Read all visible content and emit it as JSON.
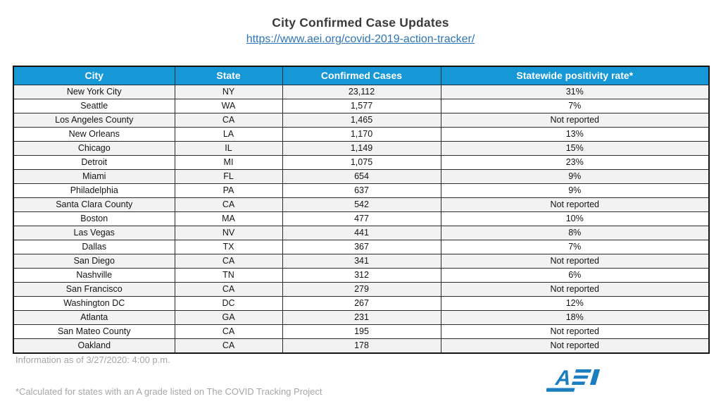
{
  "page": {
    "title": "City Confirmed Case Updates",
    "link_text": "https://www.aei.org/covid-2019-action-tracker/"
  },
  "table": {
    "columns": [
      "City",
      "State",
      "Confirmed Cases",
      "Statewide positivity rate*"
    ],
    "rows": [
      {
        "city": "New York City",
        "state": "NY",
        "cases": "23,112",
        "rate": "31%"
      },
      {
        "city": "Seattle",
        "state": "WA",
        "cases": "1,577",
        "rate": "7%"
      },
      {
        "city": "Los Angeles County",
        "state": "CA",
        "cases": "1,465",
        "rate": "Not reported"
      },
      {
        "city": "New Orleans",
        "state": "LA",
        "cases": "1,170",
        "rate": "13%"
      },
      {
        "city": "Chicago",
        "state": "IL",
        "cases": "1,149",
        "rate": "15%"
      },
      {
        "city": "Detroit",
        "state": "MI",
        "cases": "1,075",
        "rate": "23%"
      },
      {
        "city": "Miami",
        "state": "FL",
        "cases": "654",
        "rate": "9%"
      },
      {
        "city": "Philadelphia",
        "state": "PA",
        "cases": "637",
        "rate": "9%"
      },
      {
        "city": "Santa Clara County",
        "state": "CA",
        "cases": "542",
        "rate": "Not reported"
      },
      {
        "city": "Boston",
        "state": "MA",
        "cases": "477",
        "rate": "10%"
      },
      {
        "city": "Las Vegas",
        "state": "NV",
        "cases": "441",
        "rate": "8%"
      },
      {
        "city": "Dallas",
        "state": "TX",
        "cases": "367",
        "rate": "7%"
      },
      {
        "city": "San Diego",
        "state": "CA",
        "cases": "341",
        "rate": "Not reported"
      },
      {
        "city": "Nashville",
        "state": "TN",
        "cases": "312",
        "rate": "6%"
      },
      {
        "city": "San Francisco",
        "state": "CA",
        "cases": "279",
        "rate": "Not reported"
      },
      {
        "city": "Washington DC",
        "state": "DC",
        "cases": "267",
        "rate": "12%"
      },
      {
        "city": "Atlanta",
        "state": "GA",
        "cases": "231",
        "rate": "18%"
      },
      {
        "city": "San Mateo County",
        "state": "CA",
        "cases": "195",
        "rate": "Not reported"
      },
      {
        "city": "Oakland",
        "state": "CA",
        "cases": "178",
        "rate": "Not reported"
      }
    ]
  },
  "footer": {
    "as_of": "Information as of 3/27/2020: 4:00 p.m.",
    "footnote": "*Calculated for states  with an A grade listed on The COVID Tracking Project"
  },
  "logo": {
    "text": "AEI"
  },
  "colors": {
    "header_bg": "#1697D6",
    "link": "#2E75B6",
    "row_alt": "#F2F2F2",
    "border": "#1F1F1F",
    "footer_text": "#A6A6A6",
    "logo_blue": "#1B7EC1"
  }
}
